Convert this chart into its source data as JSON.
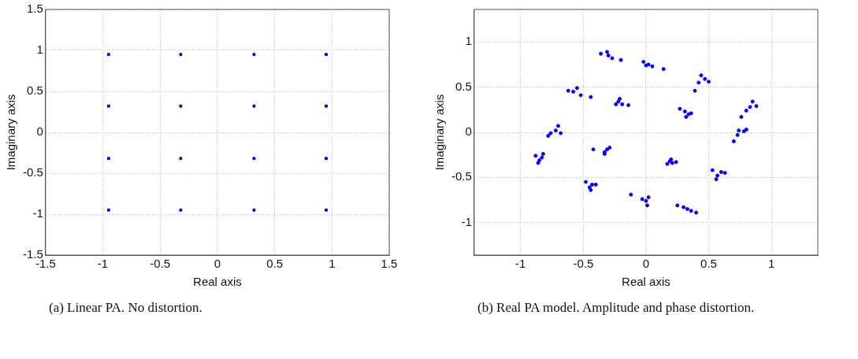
{
  "chart_data": [
    {
      "type": "scatter",
      "xlabel": "Real axis",
      "ylabel": "Imaginary axis",
      "annotations": [
        "(a)  Linear PA. No distortion."
      ],
      "xlim": [
        -1.5,
        1.5
      ],
      "ylim": [
        -1.5,
        1.5
      ],
      "xticks": [
        -1.5,
        -1,
        -0.5,
        0,
        0.5,
        1,
        1.5
      ],
      "yticks": [
        -1.5,
        -1,
        -0.5,
        0,
        0.5,
        1,
        1.5
      ],
      "grid": true,
      "legend": false,
      "marker": "square",
      "series": [
        {
          "color": "#0000ff",
          "x": [
            -0.95,
            -0.32,
            0.32,
            0.95,
            -0.95,
            -0.32,
            0.32,
            0.95,
            -0.95,
            -0.32,
            0.32,
            0.95,
            -0.95,
            -0.32,
            0.32,
            0.95
          ],
          "values": [
            0.95,
            0.95,
            0.95,
            0.95,
            0.32,
            0.32,
            0.32,
            0.32,
            -0.32,
            -0.32,
            -0.32,
            -0.32,
            -0.95,
            -0.95,
            -0.95,
            -0.95
          ]
        }
      ]
    },
    {
      "type": "scatter",
      "xlabel": "Real axis",
      "ylabel": "Imaginary axis",
      "annotations": [
        "(b)  Real PA model.  Amplitude and phase distortion."
      ],
      "xlim": [
        -1.37,
        1.37
      ],
      "ylim": [
        -1.36,
        1.36
      ],
      "xticks": [
        -1,
        -0.5,
        0,
        0.5,
        1
      ],
      "yticks": [
        -1,
        -0.5,
        0,
        0.5,
        1
      ],
      "grid": true,
      "legend": false,
      "marker": "circle",
      "series": [
        {
          "color": "#0000ff",
          "x": [
            -0.36,
            -0.3,
            -0.27,
            -0.2,
            -0.31,
            -0.02,
            0.02,
            0.05,
            0.14,
            0.0,
            0.44,
            0.47,
            0.5,
            0.42,
            0.39,
            0.85,
            0.83,
            0.88,
            0.8,
            0.76,
            0.74,
            0.78,
            0.73,
            0.7,
            0.8,
            0.31,
            0.34,
            0.32,
            0.27,
            0.36,
            -0.22,
            -0.19,
            -0.14,
            -0.24,
            -0.21,
            -0.62,
            -0.58,
            -0.55,
            -0.52,
            -0.44,
            -0.76,
            -0.72,
            -0.7,
            -0.78,
            -0.68,
            -0.85,
            -0.83,
            -0.86,
            -0.82,
            -0.88,
            -0.33,
            -0.31,
            -0.29,
            -0.33,
            -0.42,
            -0.45,
            -0.43,
            -0.48,
            -0.4,
            -0.44,
            0.0,
            -0.03,
            0.02,
            -0.12,
            0.01,
            0.3,
            0.33,
            0.36,
            0.25,
            0.4,
            0.19,
            0.21,
            0.17,
            0.24,
            0.2,
            0.6,
            0.63,
            0.57,
            0.53,
            0.56
          ],
          "values": [
            0.87,
            0.85,
            0.82,
            0.8,
            0.89,
            0.78,
            0.75,
            0.73,
            0.7,
            0.74,
            0.63,
            0.59,
            0.56,
            0.55,
            0.46,
            0.34,
            0.28,
            0.29,
            0.24,
            0.17,
            0.02,
            0.01,
            -0.03,
            -0.1,
            0.03,
            0.23,
            0.2,
            0.17,
            0.26,
            0.21,
            0.34,
            0.31,
            0.3,
            0.31,
            0.37,
            0.46,
            0.45,
            0.49,
            0.41,
            0.39,
            -0.01,
            0.02,
            0.07,
            -0.04,
            -0.01,
            -0.31,
            -0.28,
            -0.34,
            -0.24,
            -0.26,
            -0.22,
            -0.19,
            -0.17,
            -0.24,
            -0.19,
            -0.61,
            -0.58,
            -0.55,
            -0.58,
            -0.64,
            -0.76,
            -0.74,
            -0.72,
            -0.69,
            -0.81,
            -0.83,
            -0.85,
            -0.87,
            -0.81,
            -0.89,
            -0.32,
            -0.34,
            -0.35,
            -0.33,
            -0.3,
            -0.44,
            -0.45,
            -0.48,
            -0.42,
            -0.52
          ]
        }
      ]
    }
  ]
}
